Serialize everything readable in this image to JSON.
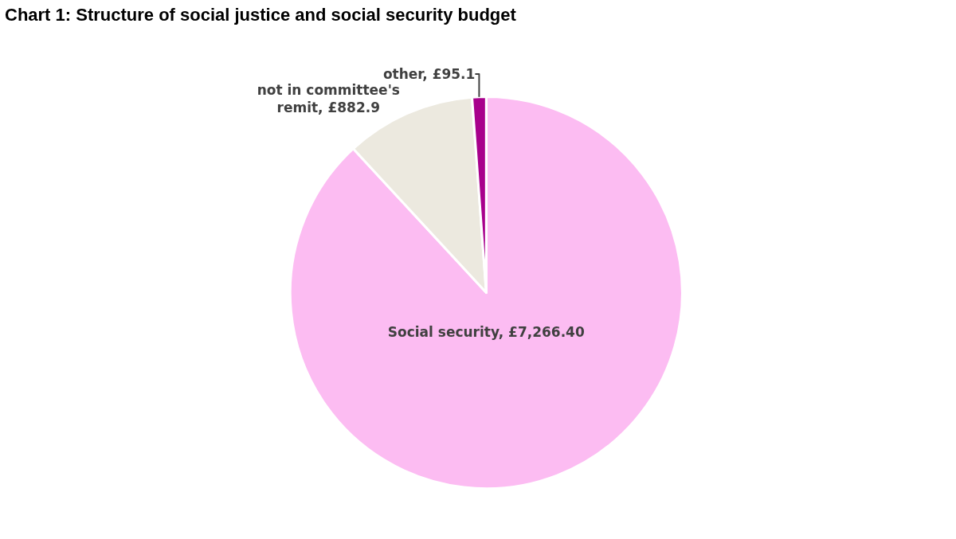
{
  "chart_data": {
    "type": "pie",
    "title": "Chart 1: Structure of social justice and social security budget",
    "categories": [
      "Social security",
      "not in committee's remit",
      "other"
    ],
    "values": [
      7266.4,
      882.9,
      95.1
    ],
    "value_labels": [
      "£7,266.40",
      "£882.9",
      "£95.1"
    ],
    "colors": [
      "#fcbcf2",
      "#ece9df",
      "#a8008c"
    ],
    "legend": false
  }
}
